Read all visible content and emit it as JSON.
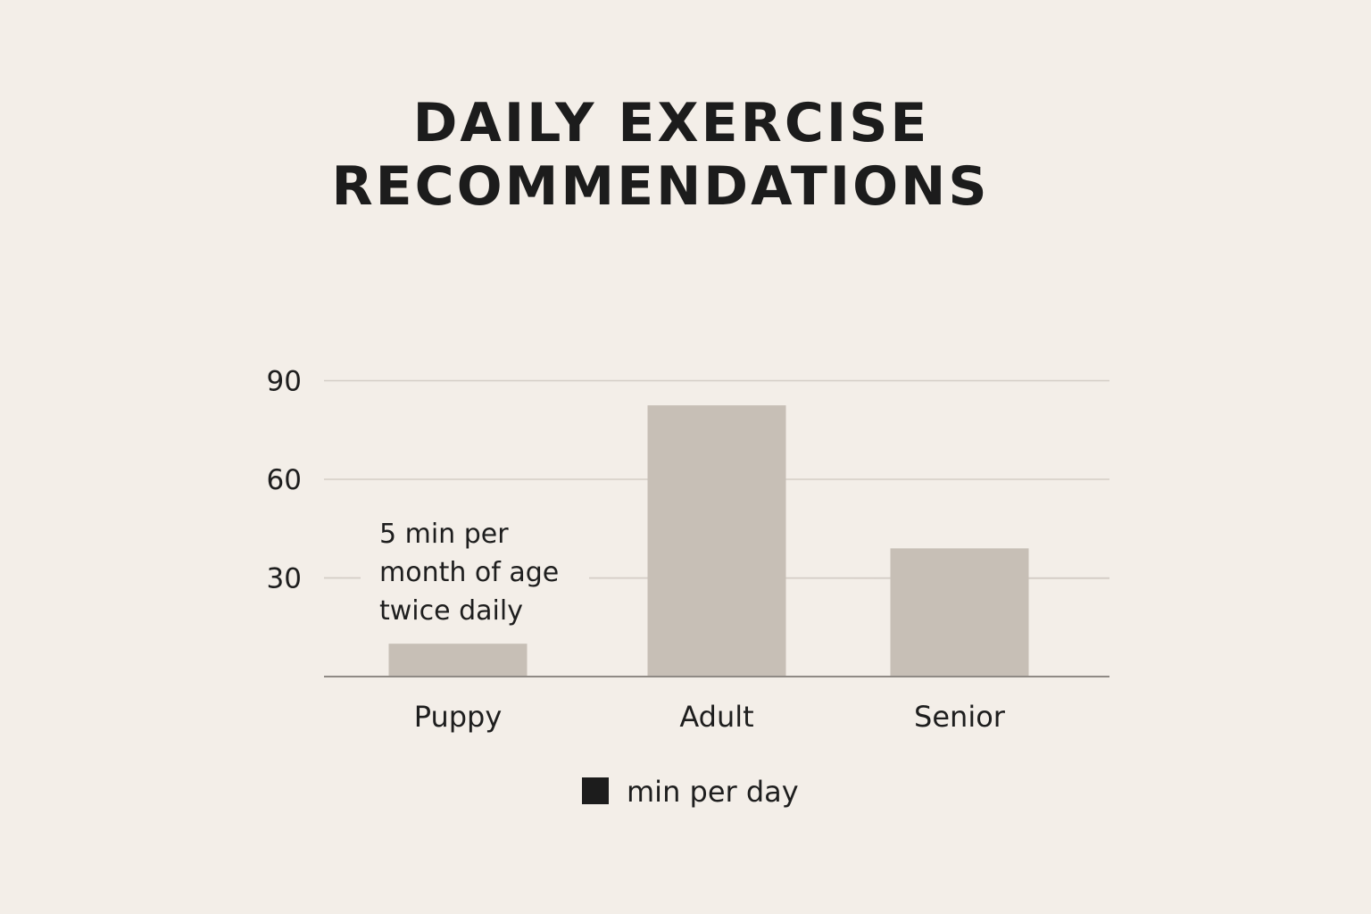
{
  "chart_data": {
    "type": "bar",
    "title_lines": [
      "DAILY EXERCISE",
      "RECOMMENDATIONS"
    ],
    "categories": [
      "Puppy",
      "Adult",
      "Senior"
    ],
    "series": [
      {
        "name": "min per day",
        "values": [
          10,
          82.5,
          39
        ]
      }
    ],
    "ylim": [
      0,
      120
    ],
    "y_ticks": [
      30,
      60,
      90
    ],
    "y_tick_labels": [
      "30",
      "60",
      "90"
    ],
    "grid": true,
    "annotation": {
      "category": "Puppy",
      "lines": [
        "5 min per",
        "month of age",
        "twice daily"
      ]
    },
    "legend": {
      "position": "bottom-center",
      "label": "min per day"
    },
    "colors": {
      "background": "#f3eee8",
      "bar": "#c7bfb6",
      "gridline": "#d4cdc6",
      "axis": "#8f8a85",
      "legend_swatch": "#1c1c1c"
    }
  }
}
